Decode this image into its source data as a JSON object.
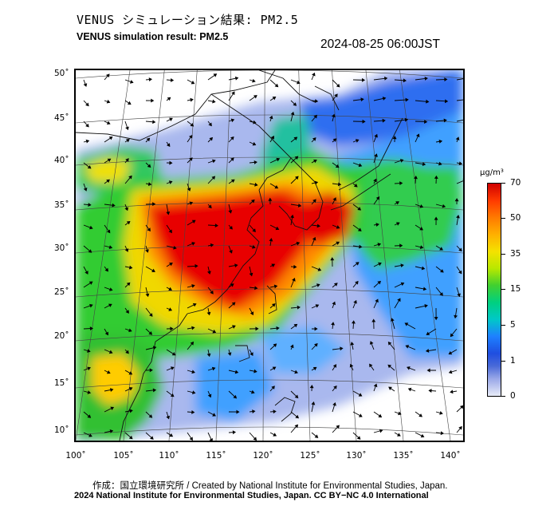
{
  "header": {
    "title_ja": "VENUS シミュレーション結果: PM2.5",
    "title_en": "VENUS simulation result: PM2.5",
    "timestamp": "2024-08-25 06:00JST"
  },
  "map": {
    "lat_ticks": [
      "50˚",
      "45˚",
      "40˚",
      "35˚",
      "30˚",
      "25˚",
      "20˚",
      "15˚",
      "10˚"
    ],
    "lon_ticks": [
      "100˚",
      "105˚",
      "110˚",
      "115˚",
      "120˚",
      "125˚",
      "130˚",
      "135˚",
      "140˚"
    ],
    "lat_values": [
      50,
      45,
      40,
      35,
      30,
      25,
      20,
      15,
      10
    ],
    "lon_values": [
      100,
      105,
      110,
      115,
      120,
      125,
      130,
      135,
      140
    ],
    "colors": {
      "high": "#e80000",
      "orange": "#ff8a00",
      "yellow": "#f0e000",
      "green": "#30cc30",
      "cyan": "#00c8d0",
      "blue": "#2060f0",
      "light_blue": "#b8c4f0",
      "coast": "#111111"
    }
  },
  "colorbar": {
    "unit_label": "µg/m³",
    "ticks": [
      "70",
      "50",
      "35",
      "15",
      "5",
      "1",
      "0"
    ]
  },
  "footer": {
    "credit_line": "作成：国立環境研究所 / Created by National Institute for Environmental Studies, Japan.",
    "license_line": "2024 National Institute for Environmental Studies, Japan. CC BY−NC 4.0 International"
  }
}
